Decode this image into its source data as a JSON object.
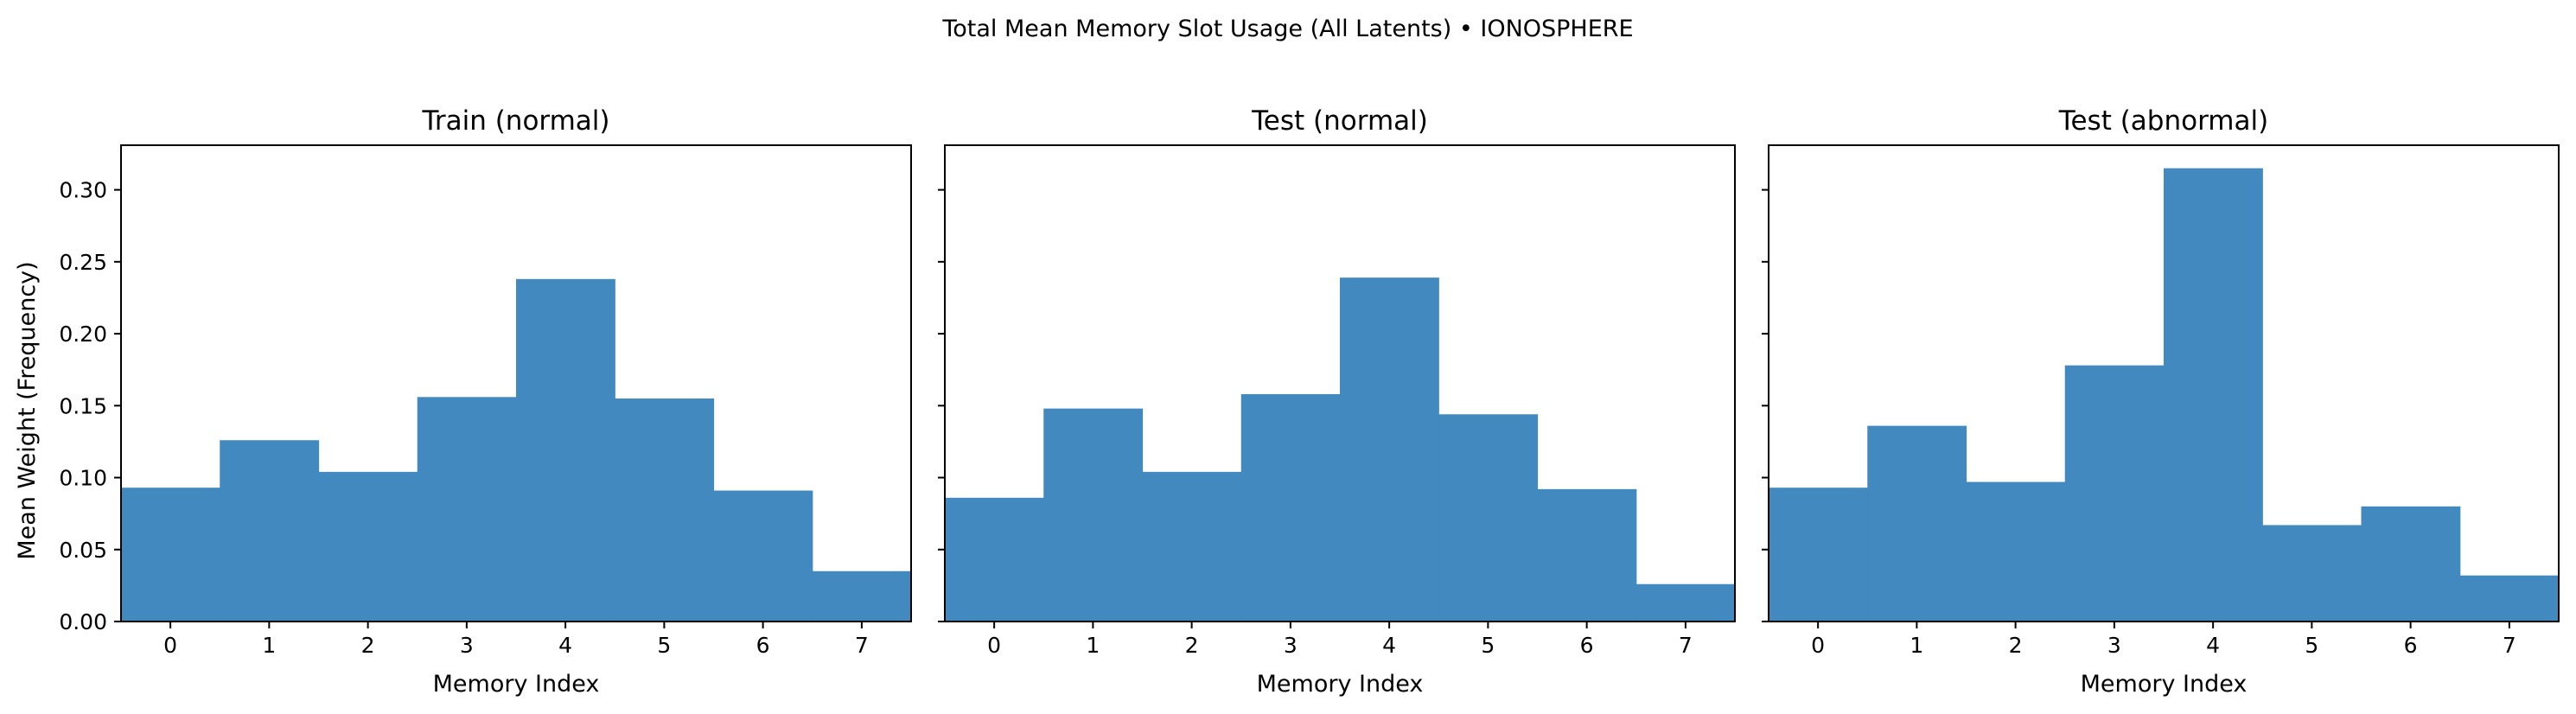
{
  "figure": {
    "suptitle": "Total Mean Memory Slot Usage (All Latents) • IONOSPHERE",
    "ylabel": "Mean Weight (Frequency)",
    "bar_color": "#4189bf"
  },
  "chart_data": [
    {
      "type": "bar",
      "title": "Train (normal)",
      "xlabel": "Memory Index",
      "ylabel": "Mean Weight (Frequency)",
      "categories": [
        "0",
        "1",
        "2",
        "3",
        "4",
        "5",
        "6",
        "7"
      ],
      "values": [
        0.093,
        0.126,
        0.104,
        0.156,
        0.238,
        0.155,
        0.091,
        0.035
      ],
      "ylim": [
        0,
        0.331
      ],
      "yticks": [
        "0.00",
        "0.05",
        "0.10",
        "0.15",
        "0.20",
        "0.25",
        "0.30"
      ],
      "grid": false
    },
    {
      "type": "bar",
      "title": "Test (normal)",
      "xlabel": "Memory Index",
      "categories": [
        "0",
        "1",
        "2",
        "3",
        "4",
        "5",
        "6",
        "7"
      ],
      "values": [
        0.086,
        0.148,
        0.104,
        0.158,
        0.239,
        0.144,
        0.092,
        0.026
      ],
      "ylim": [
        0,
        0.331
      ],
      "grid": false
    },
    {
      "type": "bar",
      "title": "Test (abnormal)",
      "xlabel": "Memory Index",
      "categories": [
        "0",
        "1",
        "2",
        "3",
        "4",
        "5",
        "6",
        "7"
      ],
      "values": [
        0.093,
        0.136,
        0.097,
        0.178,
        0.315,
        0.067,
        0.08,
        0.032
      ],
      "ylim": [
        0,
        0.331
      ],
      "grid": false
    }
  ]
}
